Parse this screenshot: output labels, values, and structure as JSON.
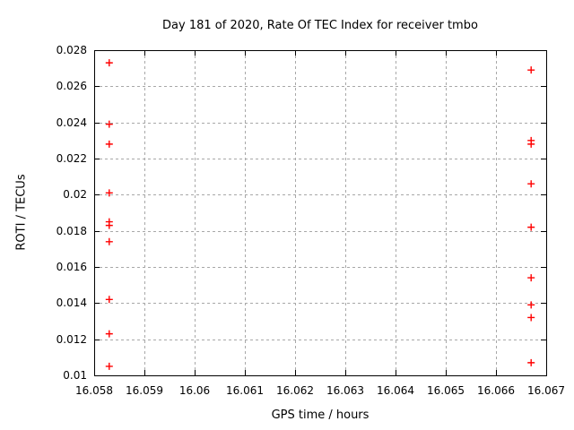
{
  "chart_data": {
    "type": "scatter",
    "title": "Day 181 of 2020, Rate Of TEC Index for receiver tmbo",
    "xlabel": "GPS time / hours",
    "ylabel": "ROTI / TECUs",
    "xlim": [
      16.058,
      16.067
    ],
    "ylim": [
      0.01,
      0.028
    ],
    "xticks": [
      16.058,
      16.059,
      16.06,
      16.061,
      16.062,
      16.063,
      16.064,
      16.065,
      16.066,
      16.067
    ],
    "xtick_labels": [
      "16.058",
      "16.059",
      "16.06",
      "16.061",
      "16.062",
      "16.063",
      "16.064",
      "16.065",
      "16.066",
      "16.067"
    ],
    "yticks": [
      0.01,
      0.012,
      0.014,
      0.016,
      0.018,
      0.02,
      0.022,
      0.024,
      0.026,
      0.028
    ],
    "ytick_labels": [
      "0.01",
      "0.012",
      "0.014",
      "0.016",
      "0.018",
      "0.02",
      "0.022",
      "0.024",
      "0.026",
      "0.028"
    ],
    "grid": true,
    "legend": "none",
    "marker": "plus",
    "marker_color": "#ff0000",
    "grid_color": "#a8a8a8",
    "series": [
      {
        "name": "ROTI",
        "x": [
          16.0583,
          16.0583,
          16.0583,
          16.0583,
          16.0583,
          16.0583,
          16.0583,
          16.0583,
          16.0583,
          16.0583,
          16.0667,
          16.0667,
          16.0667,
          16.0667,
          16.0667,
          16.0667,
          16.0667,
          16.0667,
          16.0667
        ],
        "y": [
          0.0273,
          0.0239,
          0.0228,
          0.0201,
          0.0185,
          0.0183,
          0.0174,
          0.0142,
          0.0123,
          0.0105,
          0.0269,
          0.023,
          0.0228,
          0.0206,
          0.0182,
          0.0154,
          0.0139,
          0.0132,
          0.0107
        ]
      }
    ]
  }
}
